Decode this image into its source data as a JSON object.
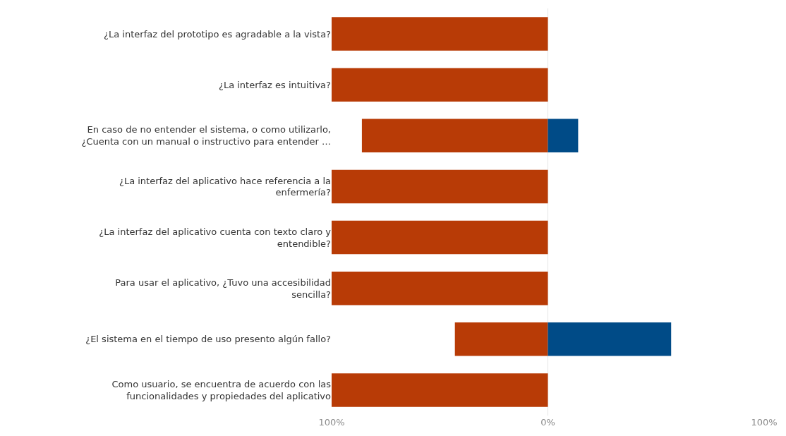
{
  "chart_data": {
    "type": "bar",
    "orientation": "horizontal",
    "stacked": true,
    "grid": "x",
    "legend": false,
    "categories": [
      "¿La interfaz del prototipo es agradable a la vista?",
      "¿La interfaz es intuitiva?",
      "En caso de no entender el sistema, o como utilizarlo, ¿Cuenta con un manual o instructivo para entender …",
      "¿La interfaz del aplicativo hace referencia a la enfermería?",
      "¿La interfaz del aplicativo cuenta con texto claro y entendible?",
      "Para usar el aplicativo, ¿Tuvo una accesibilidad sencilla?",
      "¿El sistema en el tiempo de uso presento algún fallo?",
      "Como usuario, se encuentra de acuerdo con las funcionalidades y propiedades del aplicativo"
    ],
    "series": [
      {
        "color": "#b83b06",
        "values": [
          -100,
          -100,
          -86,
          -100,
          -100,
          -100,
          -43,
          -100
        ]
      },
      {
        "color": "#004b87",
        "values": [
          0,
          0,
          14,
          0,
          0,
          0,
          57,
          0
        ]
      }
    ],
    "xlim": [
      -100,
      100
    ],
    "xticks": [
      {
        "value": -100,
        "label": "100%"
      },
      {
        "value": 0,
        "label": "0%"
      },
      {
        "value": 100,
        "label": "100%"
      }
    ]
  }
}
